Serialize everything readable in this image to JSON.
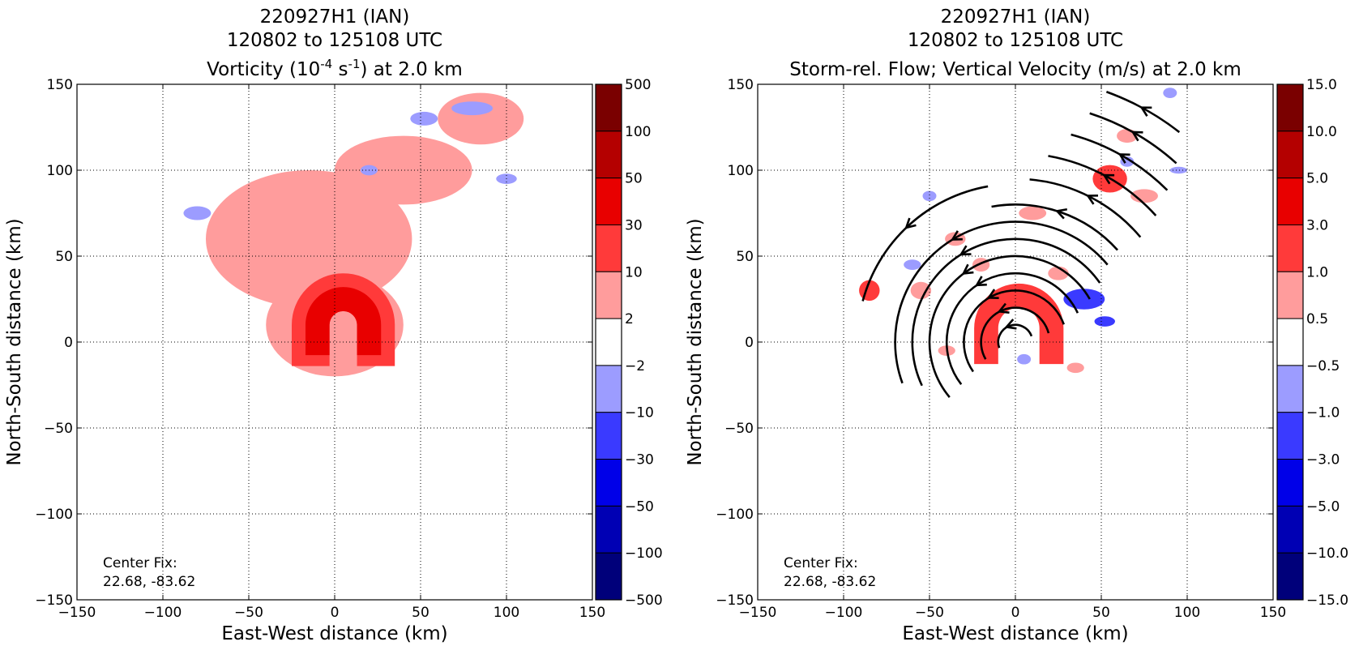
{
  "chart_data": [
    {
      "type": "heatmap",
      "title_lines": [
        "220927H1 (IAN)",
        "120802 to 125108 UTC"
      ],
      "title_field": {
        "pre": "Vorticity (10",
        "sup1": "-4",
        "mid": " s",
        "sup2": "-1",
        "post": ") at 2.0 km"
      },
      "xlabel": "East-West distance (km)",
      "ylabel": "North-South distance (km)",
      "xlim": [
        -150,
        150
      ],
      "ylim": [
        -150,
        150
      ],
      "xticks": [
        "−150",
        "−100",
        "−50",
        "0",
        "50",
        "100",
        "150"
      ],
      "yticks": [
        "−150",
        "−100",
        "−50",
        "0",
        "50",
        "100",
        "150"
      ],
      "grid": true,
      "annotation": [
        "Center Fix:",
        "22.68, -83.62"
      ],
      "colorbar": {
        "levels": [
          "500",
          "100",
          "50",
          "30",
          "10",
          "2",
          "−2",
          "−10",
          "−30",
          "−50",
          "−100",
          "−500"
        ],
        "colors": [
          "#7a0000",
          "#b40000",
          "#e80000",
          "#ff3a3a",
          "#ff9c9c",
          "#ffffff",
          "#9c9cff",
          "#3a3aff",
          "#0000e8",
          "#0000b4",
          "#00007a"
        ]
      },
      "features": [
        {
          "shape": "ellipse",
          "cx": -15,
          "cy": 60,
          "rx": 60,
          "ry": 40,
          "level": "2 to 10"
        },
        {
          "shape": "ellipse",
          "cx": 40,
          "cy": 100,
          "rx": 40,
          "ry": 20,
          "level": "2 to 10"
        },
        {
          "shape": "ellipse",
          "cx": 85,
          "cy": 130,
          "rx": 25,
          "ry": 15,
          "level": "2 to 10"
        },
        {
          "shape": "ellipse",
          "cx": 0,
          "cy": 10,
          "rx": 40,
          "ry": 30,
          "level": "2 to 10"
        },
        {
          "shape": "ring",
          "cx": 5,
          "cy": 10,
          "r_outer": 30,
          "r_inner": 8,
          "level": "10 to 30"
        },
        {
          "shape": "ring",
          "cx": 5,
          "cy": 10,
          "r_outer": 22,
          "r_inner": 8,
          "level": "30 to 50"
        },
        {
          "shape": "ellipse",
          "cx": 52,
          "cy": 130,
          "rx": 8,
          "ry": 4,
          "level": "-2 to -10"
        },
        {
          "shape": "ellipse",
          "cx": 80,
          "cy": 136,
          "rx": 12,
          "ry": 4,
          "level": "-2 to -10"
        },
        {
          "shape": "ellipse",
          "cx": 100,
          "cy": 95,
          "rx": 6,
          "ry": 3,
          "level": "-2 to -10"
        },
        {
          "shape": "ellipse",
          "cx": -80,
          "cy": 75,
          "rx": 8,
          "ry": 4,
          "level": "-2 to -10"
        },
        {
          "shape": "ellipse",
          "cx": 20,
          "cy": 100,
          "rx": 5,
          "ry": 3,
          "level": "-2 to -10"
        }
      ]
    },
    {
      "type": "heatmap",
      "title_lines": [
        "220927H1 (IAN)",
        "120802 to 125108 UTC"
      ],
      "title_field": {
        "pre": "Storm-rel. Flow; Vertical Velocity (m/s) at 2.0 km",
        "sup1": "",
        "mid": "",
        "sup2": "",
        "post": ""
      },
      "xlabel": "East-West distance (km)",
      "ylabel": "North-South distance (km)",
      "xlim": [
        -150,
        150
      ],
      "ylim": [
        -150,
        150
      ],
      "xticks": [
        "−150",
        "−100",
        "−50",
        "0",
        "50",
        "100",
        "150"
      ],
      "yticks": [
        "−150",
        "−100",
        "−50",
        "0",
        "50",
        "100",
        "150"
      ],
      "grid": true,
      "annotation": [
        "Center Fix:",
        "22.68, -83.62"
      ],
      "colorbar": {
        "levels": [
          "15.0",
          "10.0",
          "5.0",
          "3.0",
          "1.0",
          "0.5",
          "−0.5",
          "−1.0",
          "−3.0",
          "−5.0",
          "−10.0",
          "−15.0"
        ],
        "colors": [
          "#7a0000",
          "#b40000",
          "#e80000",
          "#ff3a3a",
          "#ff9c9c",
          "#ffffff",
          "#9c9cff",
          "#3a3aff",
          "#0000e8",
          "#0000b4",
          "#00007a"
        ]
      },
      "features": [
        {
          "shape": "ring",
          "cx": 2,
          "cy": 8,
          "r_outer": 26,
          "r_inner": 12,
          "level": "1.0 to 3.0"
        },
        {
          "shape": "ellipse",
          "cx": 55,
          "cy": 95,
          "rx": 10,
          "ry": 8,
          "level": "1.0 to 3.0"
        },
        {
          "shape": "ellipse",
          "cx": -85,
          "cy": 30,
          "rx": 6,
          "ry": 6,
          "level": "1.0 to 3.0"
        },
        {
          "shape": "ellipse",
          "cx": 40,
          "cy": 25,
          "rx": 12,
          "ry": 6,
          "level": "-1.0 to -3.0"
        },
        {
          "shape": "ellipse",
          "cx": 52,
          "cy": 12,
          "rx": 6,
          "ry": 3,
          "level": "-1.0 to -3.0"
        },
        {
          "shape": "ellipse",
          "cx": -35,
          "cy": 60,
          "rx": 6,
          "ry": 4,
          "level": "0.5 to 1.0"
        },
        {
          "shape": "ellipse",
          "cx": -55,
          "cy": 30,
          "rx": 6,
          "ry": 5,
          "level": "0.5 to 1.0"
        },
        {
          "shape": "ellipse",
          "cx": -20,
          "cy": 45,
          "rx": 5,
          "ry": 4,
          "level": "0.5 to 1.0"
        },
        {
          "shape": "ellipse",
          "cx": 25,
          "cy": 40,
          "rx": 6,
          "ry": 4,
          "level": "0.5 to 1.0"
        },
        {
          "shape": "ellipse",
          "cx": 10,
          "cy": 75,
          "rx": 8,
          "ry": 4,
          "level": "0.5 to 1.0"
        },
        {
          "shape": "ellipse",
          "cx": 75,
          "cy": 85,
          "rx": 8,
          "ry": 4,
          "level": "0.5 to 1.0"
        },
        {
          "shape": "ellipse",
          "cx": 65,
          "cy": 120,
          "rx": 6,
          "ry": 4,
          "level": "0.5 to 1.0"
        },
        {
          "shape": "ellipse",
          "cx": -40,
          "cy": -5,
          "rx": 5,
          "ry": 3,
          "level": "0.5 to 1.0"
        },
        {
          "shape": "ellipse",
          "cx": 35,
          "cy": -15,
          "rx": 5,
          "ry": 3,
          "level": "0.5 to 1.0"
        },
        {
          "shape": "ellipse",
          "cx": -60,
          "cy": 45,
          "rx": 5,
          "ry": 3,
          "level": "-0.5 to -1.0"
        },
        {
          "shape": "ellipse",
          "cx": -50,
          "cy": 85,
          "rx": 4,
          "ry": 3,
          "level": "-0.5 to -1.0"
        },
        {
          "shape": "ellipse",
          "cx": 90,
          "cy": 145,
          "rx": 4,
          "ry": 3,
          "level": "-0.5 to -1.0"
        },
        {
          "shape": "ellipse",
          "cx": 65,
          "cy": 105,
          "rx": 4,
          "ry": 3,
          "level": "-0.5 to -1.0"
        },
        {
          "shape": "ellipse",
          "cx": 5,
          "cy": -10,
          "rx": 4,
          "ry": 3,
          "level": "-0.5 to -1.0"
        },
        {
          "shape": "ellipse",
          "cx": 95,
          "cy": 100,
          "rx": 5,
          "ry": 2,
          "level": "-0.5 to -1.0"
        }
      ],
      "streamlines": {
        "center": [
          0,
          0
        ],
        "arcs": [
          {
            "radius": 10,
            "start_deg": 20,
            "end_deg": 200
          },
          {
            "radius": 20,
            "start_deg": 15,
            "end_deg": 210
          },
          {
            "radius": 30,
            "start_deg": 20,
            "end_deg": 215
          },
          {
            "radius": 40,
            "start_deg": 25,
            "end_deg": 218
          },
          {
            "radius": 50,
            "start_deg": 30,
            "end_deg": 220
          },
          {
            "radius": 60,
            "start_deg": 35,
            "end_deg": 205
          },
          {
            "radius": 70,
            "start_deg": 40,
            "end_deg": 200
          },
          {
            "radius": 80,
            "start_deg": 42,
            "end_deg": 100
          },
          {
            "radius": 92,
            "start_deg": 100,
            "end_deg": 165
          },
          {
            "radius": 95,
            "start_deg": 40,
            "end_deg": 85
          },
          {
            "radius": 110,
            "start_deg": 42,
            "end_deg": 80
          },
          {
            "radius": 125,
            "start_deg": 45,
            "end_deg": 75
          },
          {
            "radius": 140,
            "start_deg": 48,
            "end_deg": 72
          },
          {
            "radius": 155,
            "start_deg": 52,
            "end_deg": 70
          }
        ],
        "direction": "counterclockwise"
      }
    }
  ]
}
